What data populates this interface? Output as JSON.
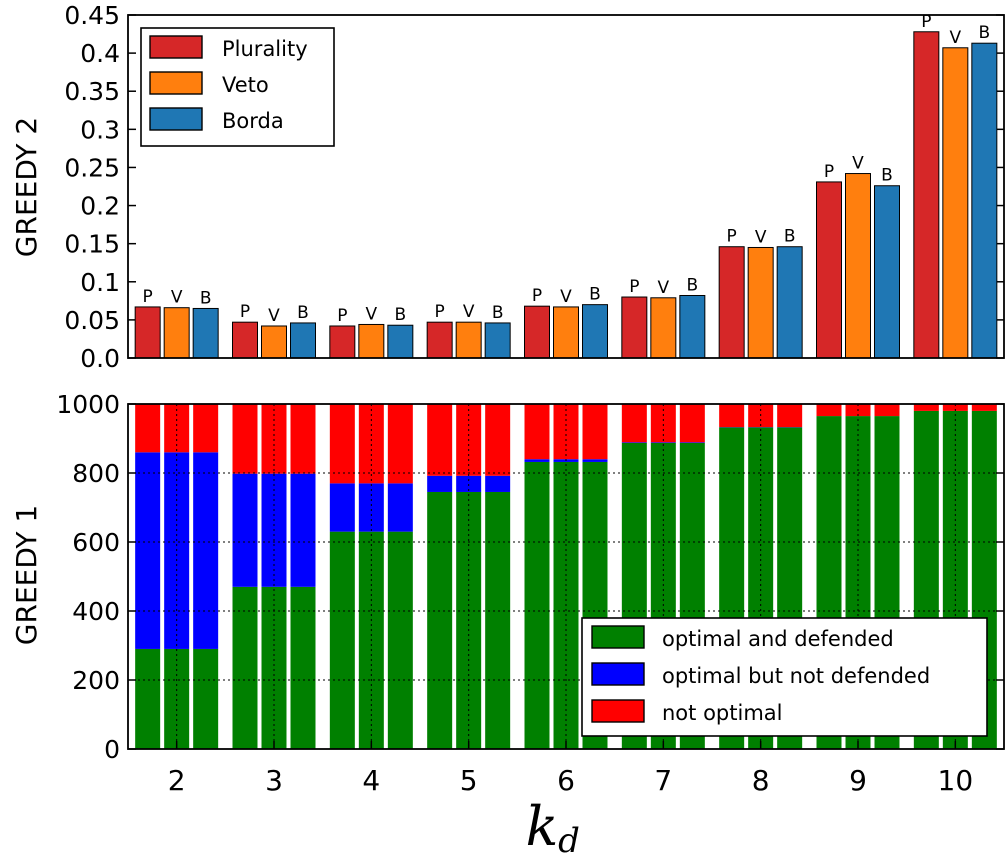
{
  "figure": {
    "xlabel_main": "k",
    "xlabel_sub": "d",
    "categories": [
      "2",
      "3",
      "4",
      "5",
      "6",
      "7",
      "8",
      "9",
      "10"
    ]
  },
  "chart_data": [
    {
      "type": "bar",
      "panel": "top",
      "ylabel": "GREEDY 2",
      "ylim": [
        0,
        0.45
      ],
      "yticks": [
        "0.0",
        "0.05",
        "0.1",
        "0.15",
        "0.2",
        "0.25",
        "0.3",
        "0.35",
        "0.4",
        "0.45"
      ],
      "grid": false,
      "legend_position": "top-left",
      "categories": [
        "2",
        "3",
        "4",
        "5",
        "6",
        "7",
        "8",
        "9",
        "10"
      ],
      "series": [
        {
          "name": "Plurality",
          "label": "P",
          "color": "#d62728",
          "values": [
            0.067,
            0.047,
            0.042,
            0.047,
            0.068,
            0.08,
            0.146,
            0.231,
            0.428
          ]
        },
        {
          "name": "Veto",
          "label": "V",
          "color": "#ff7f0e",
          "values": [
            0.066,
            0.042,
            0.044,
            0.047,
            0.067,
            0.079,
            0.145,
            0.242,
            0.407
          ]
        },
        {
          "name": "Borda",
          "label": "B",
          "color": "#1f77b4",
          "values": [
            0.065,
            0.046,
            0.043,
            0.046,
            0.07,
            0.082,
            0.146,
            0.226,
            0.413
          ]
        }
      ]
    },
    {
      "type": "bar",
      "stacked": true,
      "panel": "bottom",
      "ylabel": "GREEDY 1",
      "ylim": [
        0,
        1000
      ],
      "yticks": [
        "0",
        "200",
        "400",
        "600",
        "800",
        "1000"
      ],
      "grid": true,
      "legend_position": "bottom-right",
      "categories": [
        "2",
        "3",
        "4",
        "5",
        "6",
        "7",
        "8",
        "9",
        "10"
      ],
      "bars_per_category": 3,
      "series": [
        {
          "name": "optimal and defended",
          "color": "#008000",
          "values": [
            290,
            470,
            630,
            745,
            832,
            887,
            932,
            965,
            980
          ]
        },
        {
          "name": "optimal but not defended",
          "color": "#0000ff",
          "values": [
            570,
            328,
            140,
            47,
            8,
            2,
            1,
            0,
            0
          ]
        },
        {
          "name": "not optimal",
          "color": "#ff0000",
          "values": [
            140,
            202,
            230,
            208,
            160,
            111,
            67,
            35,
            20
          ]
        }
      ]
    }
  ]
}
